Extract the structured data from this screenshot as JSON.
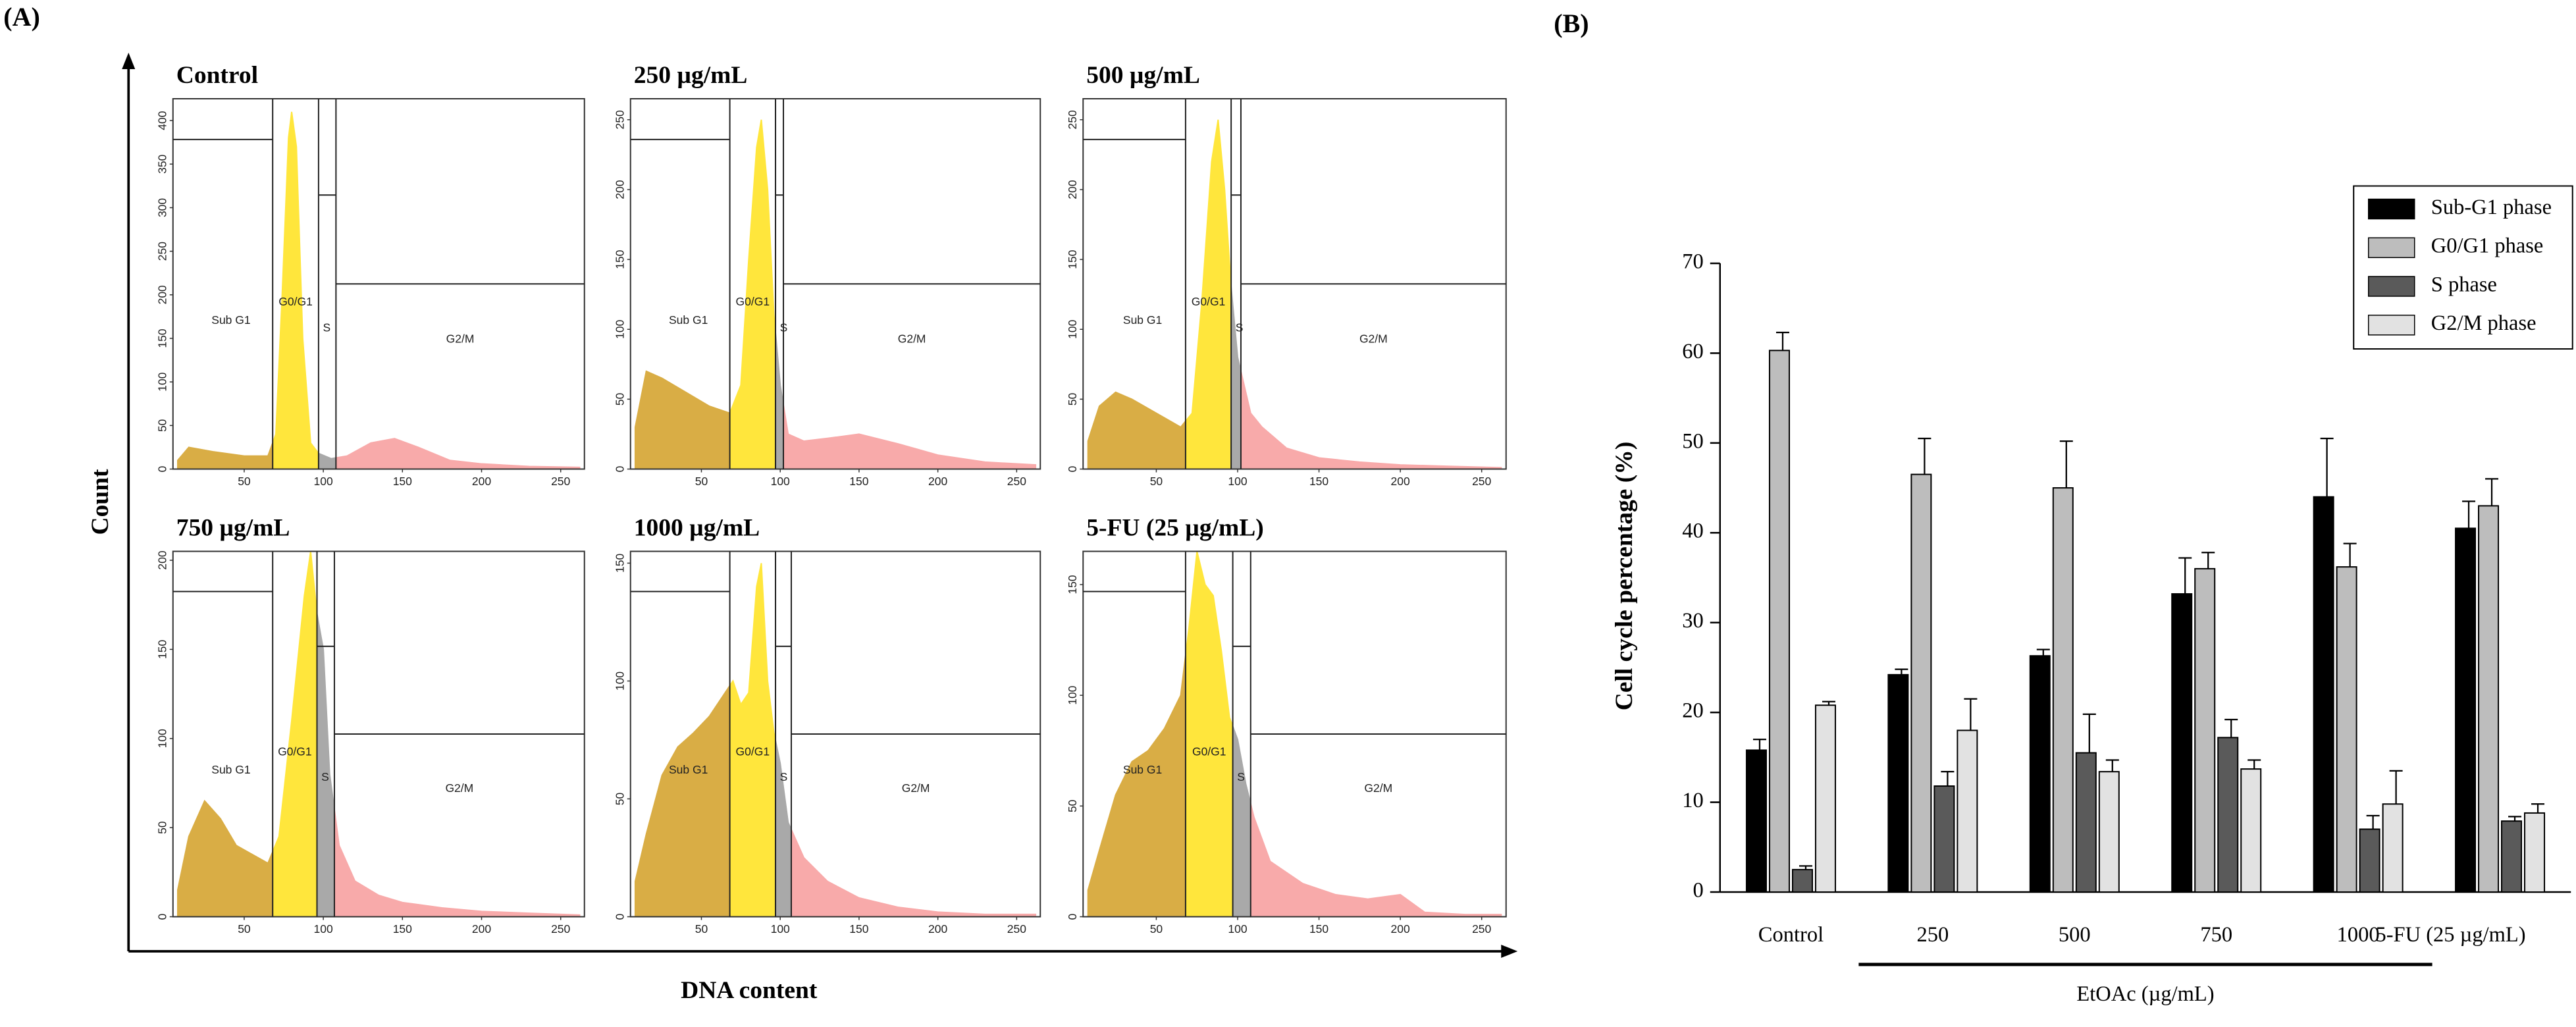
{
  "panel_labels": [
    "(A)",
    "(B)"
  ],
  "x_label": "DNA content",
  "y_label": "Count",
  "gate_labels": [
    "Sub G1",
    "G0/G1",
    "S",
    "G2/M"
  ],
  "region_colors": [
    "#d9ad45",
    "#ffe63c",
    "#a9a9a9",
    "#f8aaaa"
  ],
  "chart_data": [
    {
      "type": "flow-histogram",
      "title": "Control",
      "xlim": [
        5,
        265
      ],
      "ylim": [
        0,
        425
      ],
      "xticks": [
        50,
        100,
        150,
        200,
        250
      ],
      "yticks": [
        0,
        50,
        100,
        150,
        200,
        250,
        300,
        350,
        400
      ],
      "gates": [
        68,
        97,
        108
      ],
      "x": [
        8,
        15,
        30,
        50,
        65,
        70,
        74,
        78,
        80,
        83,
        87,
        92,
        97,
        105,
        115,
        130,
        145,
        160,
        180,
        200,
        230,
        262
      ],
      "values": [
        10,
        25,
        20,
        15,
        15,
        40,
        200,
        380,
        410,
        370,
        150,
        30,
        18,
        12,
        15,
        30,
        35,
        25,
        10,
        6,
        3,
        2
      ]
    },
    {
      "type": "flow-histogram",
      "title": "250 µg/mL",
      "xlim": [
        5,
        265
      ],
      "ylim": [
        0,
        265
      ],
      "xticks": [
        50,
        100,
        150,
        200,
        250
      ],
      "yticks": [
        0,
        50,
        100,
        150,
        200,
        250
      ],
      "gates": [
        68,
        97,
        102
      ],
      "x": [
        8,
        15,
        25,
        40,
        55,
        68,
        75,
        80,
        85,
        88,
        92,
        96,
        100,
        105,
        115,
        130,
        150,
        175,
        200,
        230,
        262
      ],
      "values": [
        30,
        70,
        65,
        55,
        45,
        40,
        60,
        150,
        230,
        250,
        200,
        110,
        60,
        25,
        20,
        22,
        25,
        18,
        10,
        5,
        3
      ]
    },
    {
      "type": "flow-histogram",
      "title": "500 µg/mL",
      "xlim": [
        5,
        265
      ],
      "ylim": [
        0,
        265
      ],
      "xticks": [
        50,
        100,
        150,
        200,
        250
      ],
      "yticks": [
        0,
        50,
        100,
        150,
        200,
        250
      ],
      "gates": [
        68,
        96,
        102
      ],
      "x": [
        8,
        15,
        25,
        35,
        50,
        65,
        72,
        78,
        84,
        88,
        92,
        96,
        100,
        108,
        115,
        130,
        150,
        175,
        200,
        230,
        262
      ],
      "values": [
        20,
        45,
        55,
        50,
        40,
        30,
        40,
        120,
        220,
        250,
        200,
        130,
        80,
        40,
        30,
        15,
        8,
        5,
        3,
        2,
        1
      ]
    },
    {
      "type": "flow-histogram",
      "title": "750 µg/mL",
      "xlim": [
        5,
        265
      ],
      "ylim": [
        0,
        205
      ],
      "xticks": [
        50,
        100,
        150,
        200,
        250
      ],
      "yticks": [
        0,
        50,
        100,
        150,
        200
      ],
      "gates": [
        68,
        96,
        107
      ],
      "x": [
        8,
        15,
        25,
        35,
        45,
        55,
        65,
        72,
        80,
        88,
        92,
        96,
        100,
        104,
        110,
        120,
        135,
        150,
        175,
        200,
        230,
        262
      ],
      "values": [
        15,
        45,
        65,
        55,
        40,
        35,
        30,
        45,
        110,
        180,
        205,
        170,
        150,
        80,
        40,
        20,
        12,
        8,
        5,
        3,
        2,
        1
      ]
    },
    {
      "type": "flow-histogram",
      "title": "1000 µg/mL",
      "xlim": [
        5,
        265
      ],
      "ylim": [
        0,
        155
      ],
      "xticks": [
        50,
        100,
        150,
        200,
        250
      ],
      "yticks": [
        0,
        50,
        100,
        150
      ],
      "gates": [
        68,
        97,
        107
      ],
      "x": [
        8,
        15,
        25,
        35,
        45,
        55,
        65,
        70,
        75,
        80,
        85,
        88,
        92,
        96,
        100,
        105,
        115,
        130,
        150,
        175,
        200,
        230,
        262
      ],
      "values": [
        15,
        35,
        60,
        72,
        78,
        85,
        95,
        100,
        90,
        95,
        140,
        150,
        100,
        78,
        65,
        40,
        25,
        15,
        8,
        4,
        2,
        1,
        1
      ]
    },
    {
      "type": "flow-histogram",
      "title": "5-FU (25 µg/mL)",
      "xlim": [
        5,
        265
      ],
      "ylim": [
        0,
        165
      ],
      "xticks": [
        50,
        100,
        150,
        200,
        250
      ],
      "yticks": [
        0,
        50,
        100,
        150
      ],
      "gates": [
        68,
        97,
        108
      ],
      "x": [
        8,
        15,
        25,
        35,
        45,
        55,
        65,
        70,
        75,
        80,
        85,
        90,
        95,
        100,
        105,
        110,
        120,
        140,
        160,
        180,
        200,
        215,
        240,
        262
      ],
      "values": [
        12,
        30,
        55,
        70,
        75,
        85,
        100,
        130,
        165,
        150,
        145,
        120,
        90,
        80,
        60,
        45,
        25,
        15,
        10,
        8,
        10,
        2,
        1,
        1
      ]
    },
    {
      "type": "grouped-bar",
      "y_label": "Cell cycle percentage (%)",
      "group_label": "EtOAc (µg/mL)",
      "categories": [
        "Control",
        "250",
        "500",
        "750",
        "1000",
        "5-FU (25 µg/mL)"
      ],
      "ylim": [
        0,
        70
      ],
      "yticks": [
        0,
        10,
        20,
        30,
        40,
        50,
        60,
        70
      ],
      "legend": "top-right",
      "series": [
        {
          "name": "Sub-G1 phase",
          "color": "#000000",
          "values": [
            15.8,
            24.2,
            26.3,
            33.2,
            44,
            40.5
          ],
          "errors": [
            1.2,
            0.6,
            0.7,
            4,
            6.5,
            3
          ]
        },
        {
          "name": "G0/G1 phase",
          "color": "#bdbdbd",
          "values": [
            60.3,
            46.5,
            45,
            36,
            36.2,
            43
          ],
          "errors": [
            2,
            4,
            5.2,
            1.8,
            2.6,
            3
          ]
        },
        {
          "name": "S phase",
          "color": "#5a5a5a",
          "values": [
            2.5,
            11.8,
            15.5,
            17.2,
            7,
            7.9
          ],
          "errors": [
            0.4,
            1.6,
            4.3,
            2,
            1.5,
            0.5
          ]
        },
        {
          "name": "G2/M phase",
          "color": "#e2e2e2",
          "values": [
            20.8,
            18,
            13.4,
            13.7,
            9.8,
            8.8
          ],
          "errors": [
            0.4,
            3.5,
            1.3,
            1,
            3.7,
            1
          ]
        }
      ]
    }
  ]
}
